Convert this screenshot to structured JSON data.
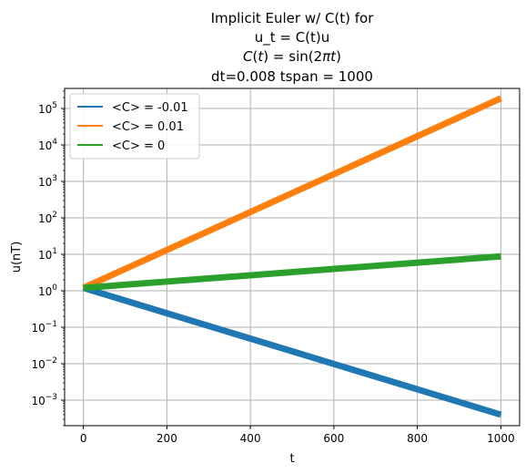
{
  "chart_data": {
    "type": "line",
    "title_lines": [
      {
        "kind": "text",
        "text": "Implicit Euler w/ C(t) for"
      },
      {
        "kind": "text",
        "text": "u_t = C(t)u"
      },
      {
        "kind": "math",
        "lhs": "C",
        "var": "t",
        "fn": "sin",
        "arg_coef": "2",
        "arg_pi": "π",
        "arg_var": "t"
      },
      {
        "kind": "text",
        "text": "dt=0.008 tspan = 1000"
      }
    ],
    "xlabel": "t",
    "ylabel": "u(nT)",
    "xlim": [
      -45,
      1045
    ],
    "ylog_lim": [
      -3.7,
      5.55
    ],
    "y_scale": "log",
    "grid": true,
    "legend_position": "top-left",
    "x_ticks": [
      {
        "value": 0,
        "label": "0"
      },
      {
        "value": 200,
        "label": "200"
      },
      {
        "value": 400,
        "label": "400"
      },
      {
        "value": 600,
        "label": "600"
      },
      {
        "value": 800,
        "label": "800"
      },
      {
        "value": 1000,
        "label": "1000"
      }
    ],
    "y_ticks": [
      {
        "exp": -3,
        "base": "10",
        "power": "−3"
      },
      {
        "exp": -2,
        "base": "10",
        "power": "−2"
      },
      {
        "exp": -1,
        "base": "10",
        "power": "−1"
      },
      {
        "exp": 0,
        "base": "10",
        "power": "0"
      },
      {
        "exp": 1,
        "base": "10",
        "power": "1"
      },
      {
        "exp": 2,
        "base": "10",
        "power": "2"
      },
      {
        "exp": 3,
        "base": "10",
        "power": "3"
      },
      {
        "exp": 4,
        "base": "10",
        "power": "4"
      },
      {
        "exp": 5,
        "base": "10",
        "power": "5"
      }
    ],
    "series": [
      {
        "name": "<C> = -0.01",
        "color": "#1f77b4",
        "x": [
          0,
          1000
        ],
        "y": [
          1.2,
          0.0004
        ]
      },
      {
        "name": "<C> = 0.01",
        "color": "#ff7f0e",
        "x": [
          0,
          1000
        ],
        "y": [
          1.2,
          190000
        ]
      },
      {
        "name": "<C> = 0",
        "color": "#2ca02c",
        "x": [
          0,
          1000
        ],
        "y": [
          1.2,
          8.8
        ]
      }
    ]
  }
}
